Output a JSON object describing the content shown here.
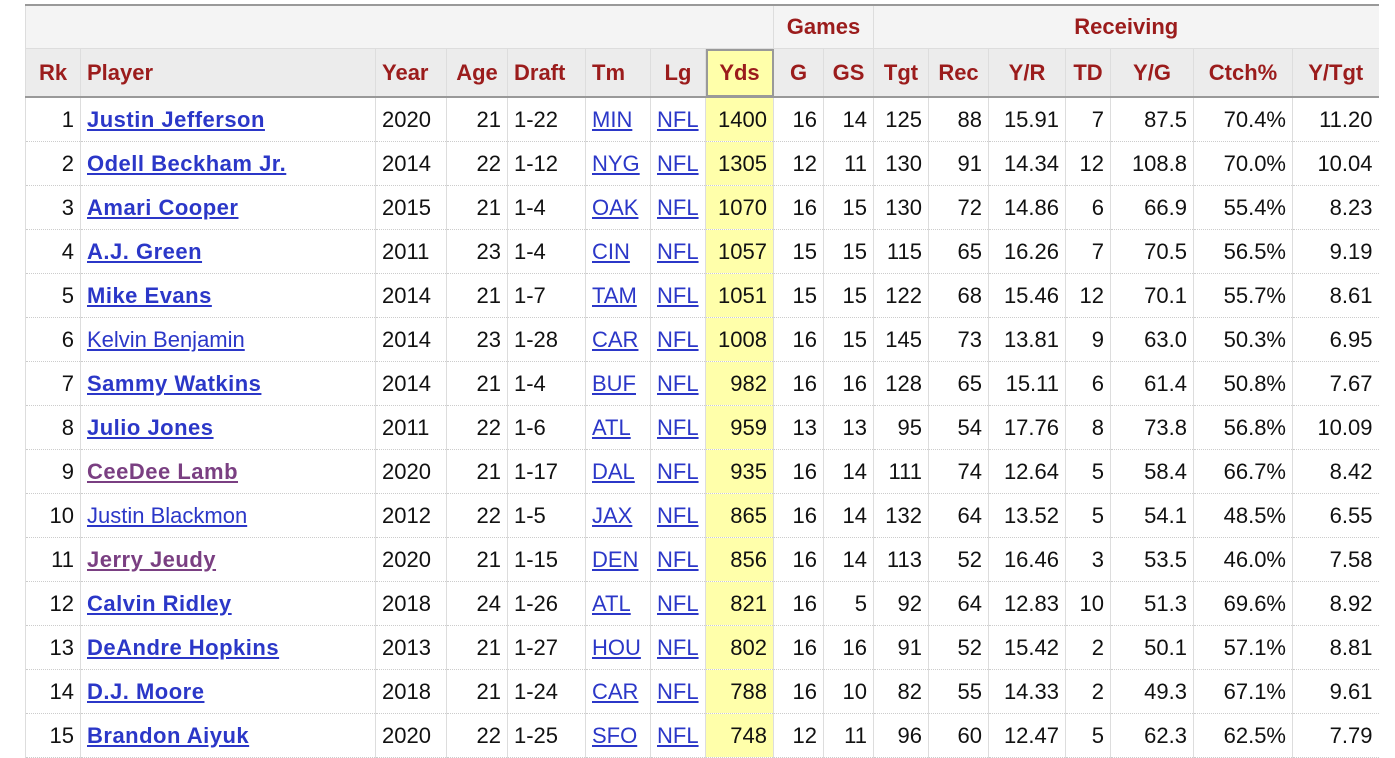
{
  "table": {
    "group_headers": [
      "Games",
      "Receiving"
    ],
    "columns": [
      "Rk",
      "Player",
      "Year",
      "Age",
      "Draft",
      "Tm",
      "Lg",
      "Yds",
      "G",
      "GS",
      "Tgt",
      "Rec",
      "Y/R",
      "TD",
      "Y/G",
      "Ctch%",
      "Y/Tgt"
    ],
    "rows": [
      [
        "1",
        "Justin Jefferson",
        "2020",
        "21",
        "1-22",
        "MIN",
        "NFL",
        "1400",
        "16",
        "14",
        "125",
        "88",
        "15.91",
        "7",
        "87.5",
        "70.4%",
        "11.20"
      ],
      [
        "2",
        "Odell Beckham Jr.",
        "2014",
        "22",
        "1-12",
        "NYG",
        "NFL",
        "1305",
        "12",
        "11",
        "130",
        "91",
        "14.34",
        "12",
        "108.8",
        "70.0%",
        "10.04"
      ],
      [
        "3",
        "Amari Cooper",
        "2015",
        "21",
        "1-4",
        "OAK",
        "NFL",
        "1070",
        "16",
        "15",
        "130",
        "72",
        "14.86",
        "6",
        "66.9",
        "55.4%",
        "8.23"
      ],
      [
        "4",
        "A.J. Green",
        "2011",
        "23",
        "1-4",
        "CIN",
        "NFL",
        "1057",
        "15",
        "15",
        "115",
        "65",
        "16.26",
        "7",
        "70.5",
        "56.5%",
        "9.19"
      ],
      [
        "5",
        "Mike Evans",
        "2014",
        "21",
        "1-7",
        "TAM",
        "NFL",
        "1051",
        "15",
        "15",
        "122",
        "68",
        "15.46",
        "12",
        "70.1",
        "55.7%",
        "8.61"
      ],
      [
        "6",
        "Kelvin Benjamin",
        "2014",
        "23",
        "1-28",
        "CAR",
        "NFL",
        "1008",
        "16",
        "15",
        "145",
        "73",
        "13.81",
        "9",
        "63.0",
        "50.3%",
        "6.95"
      ],
      [
        "7",
        "Sammy Watkins",
        "2014",
        "21",
        "1-4",
        "BUF",
        "NFL",
        "982",
        "16",
        "16",
        "128",
        "65",
        "15.11",
        "6",
        "61.4",
        "50.8%",
        "7.67"
      ],
      [
        "8",
        "Julio Jones",
        "2011",
        "22",
        "1-6",
        "ATL",
        "NFL",
        "959",
        "13",
        "13",
        "95",
        "54",
        "17.76",
        "8",
        "73.8",
        "56.8%",
        "10.09"
      ],
      [
        "9",
        "CeeDee Lamb",
        "2020",
        "21",
        "1-17",
        "DAL",
        "NFL",
        "935",
        "16",
        "14",
        "111",
        "74",
        "12.64",
        "5",
        "58.4",
        "66.7%",
        "8.42"
      ],
      [
        "10",
        "Justin Blackmon",
        "2012",
        "22",
        "1-5",
        "JAX",
        "NFL",
        "865",
        "16",
        "14",
        "132",
        "64",
        "13.52",
        "5",
        "54.1",
        "48.5%",
        "6.55"
      ],
      [
        "11",
        "Jerry Jeudy",
        "2020",
        "21",
        "1-15",
        "DEN",
        "NFL",
        "856",
        "16",
        "14",
        "113",
        "52",
        "16.46",
        "3",
        "53.5",
        "46.0%",
        "7.58"
      ],
      [
        "12",
        "Calvin Ridley",
        "2018",
        "24",
        "1-26",
        "ATL",
        "NFL",
        "821",
        "16",
        "5",
        "92",
        "64",
        "12.83",
        "10",
        "51.3",
        "69.6%",
        "8.92"
      ],
      [
        "13",
        "DeAndre Hopkins",
        "2013",
        "21",
        "1-27",
        "HOU",
        "NFL",
        "802",
        "16",
        "16",
        "91",
        "52",
        "15.42",
        "2",
        "50.1",
        "57.1%",
        "8.81"
      ],
      [
        "14",
        "D.J. Moore",
        "2018",
        "21",
        "1-24",
        "CAR",
        "NFL",
        "788",
        "16",
        "10",
        "82",
        "55",
        "14.33",
        "2",
        "49.3",
        "67.1%",
        "9.61"
      ],
      [
        "15",
        "Brandon Aiyuk",
        "2020",
        "22",
        "1-25",
        "SFO",
        "NFL",
        "748",
        "12",
        "11",
        "96",
        "60",
        "12.47",
        "5",
        "62.3",
        "62.5%",
        "7.79"
      ]
    ]
  }
}
